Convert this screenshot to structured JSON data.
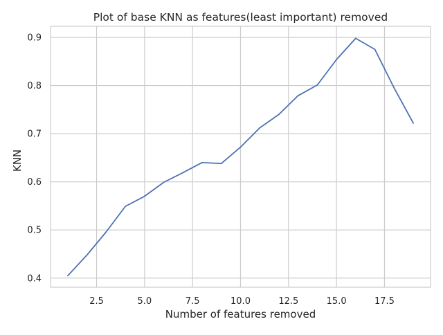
{
  "chart_data": {
    "type": "line",
    "title": "Plot of base KNN as features(least important) removed",
    "xlabel": "Number of features removed",
    "ylabel": "KNN",
    "xlim": [
      0.1,
      19.9
    ],
    "ylim": [
      0.381,
      0.923
    ],
    "xticks": [
      2.5,
      5.0,
      7.5,
      10.0,
      12.5,
      15.0,
      17.5
    ],
    "xtick_labels": [
      "2.5",
      "5.0",
      "7.5",
      "10.0",
      "12.5",
      "15.0",
      "17.5"
    ],
    "yticks": [
      0.4,
      0.5,
      0.6,
      0.7,
      0.8,
      0.9
    ],
    "ytick_labels": [
      "0.4",
      "0.5",
      "0.6",
      "0.7",
      "0.8",
      "0.9"
    ],
    "grid": true,
    "series": [
      {
        "color": "#4c72b0",
        "x": [
          1,
          2,
          3,
          4,
          5,
          6,
          7,
          8,
          9,
          10,
          11,
          12,
          13,
          14,
          15,
          16,
          17,
          18,
          19
        ],
        "values": [
          0.405,
          0.448,
          0.496,
          0.549,
          0.57,
          0.599,
          0.619,
          0.64,
          0.638,
          0.672,
          0.712,
          0.74,
          0.779,
          0.801,
          0.854,
          0.898,
          0.875,
          0.795,
          0.722
        ]
      }
    ]
  }
}
